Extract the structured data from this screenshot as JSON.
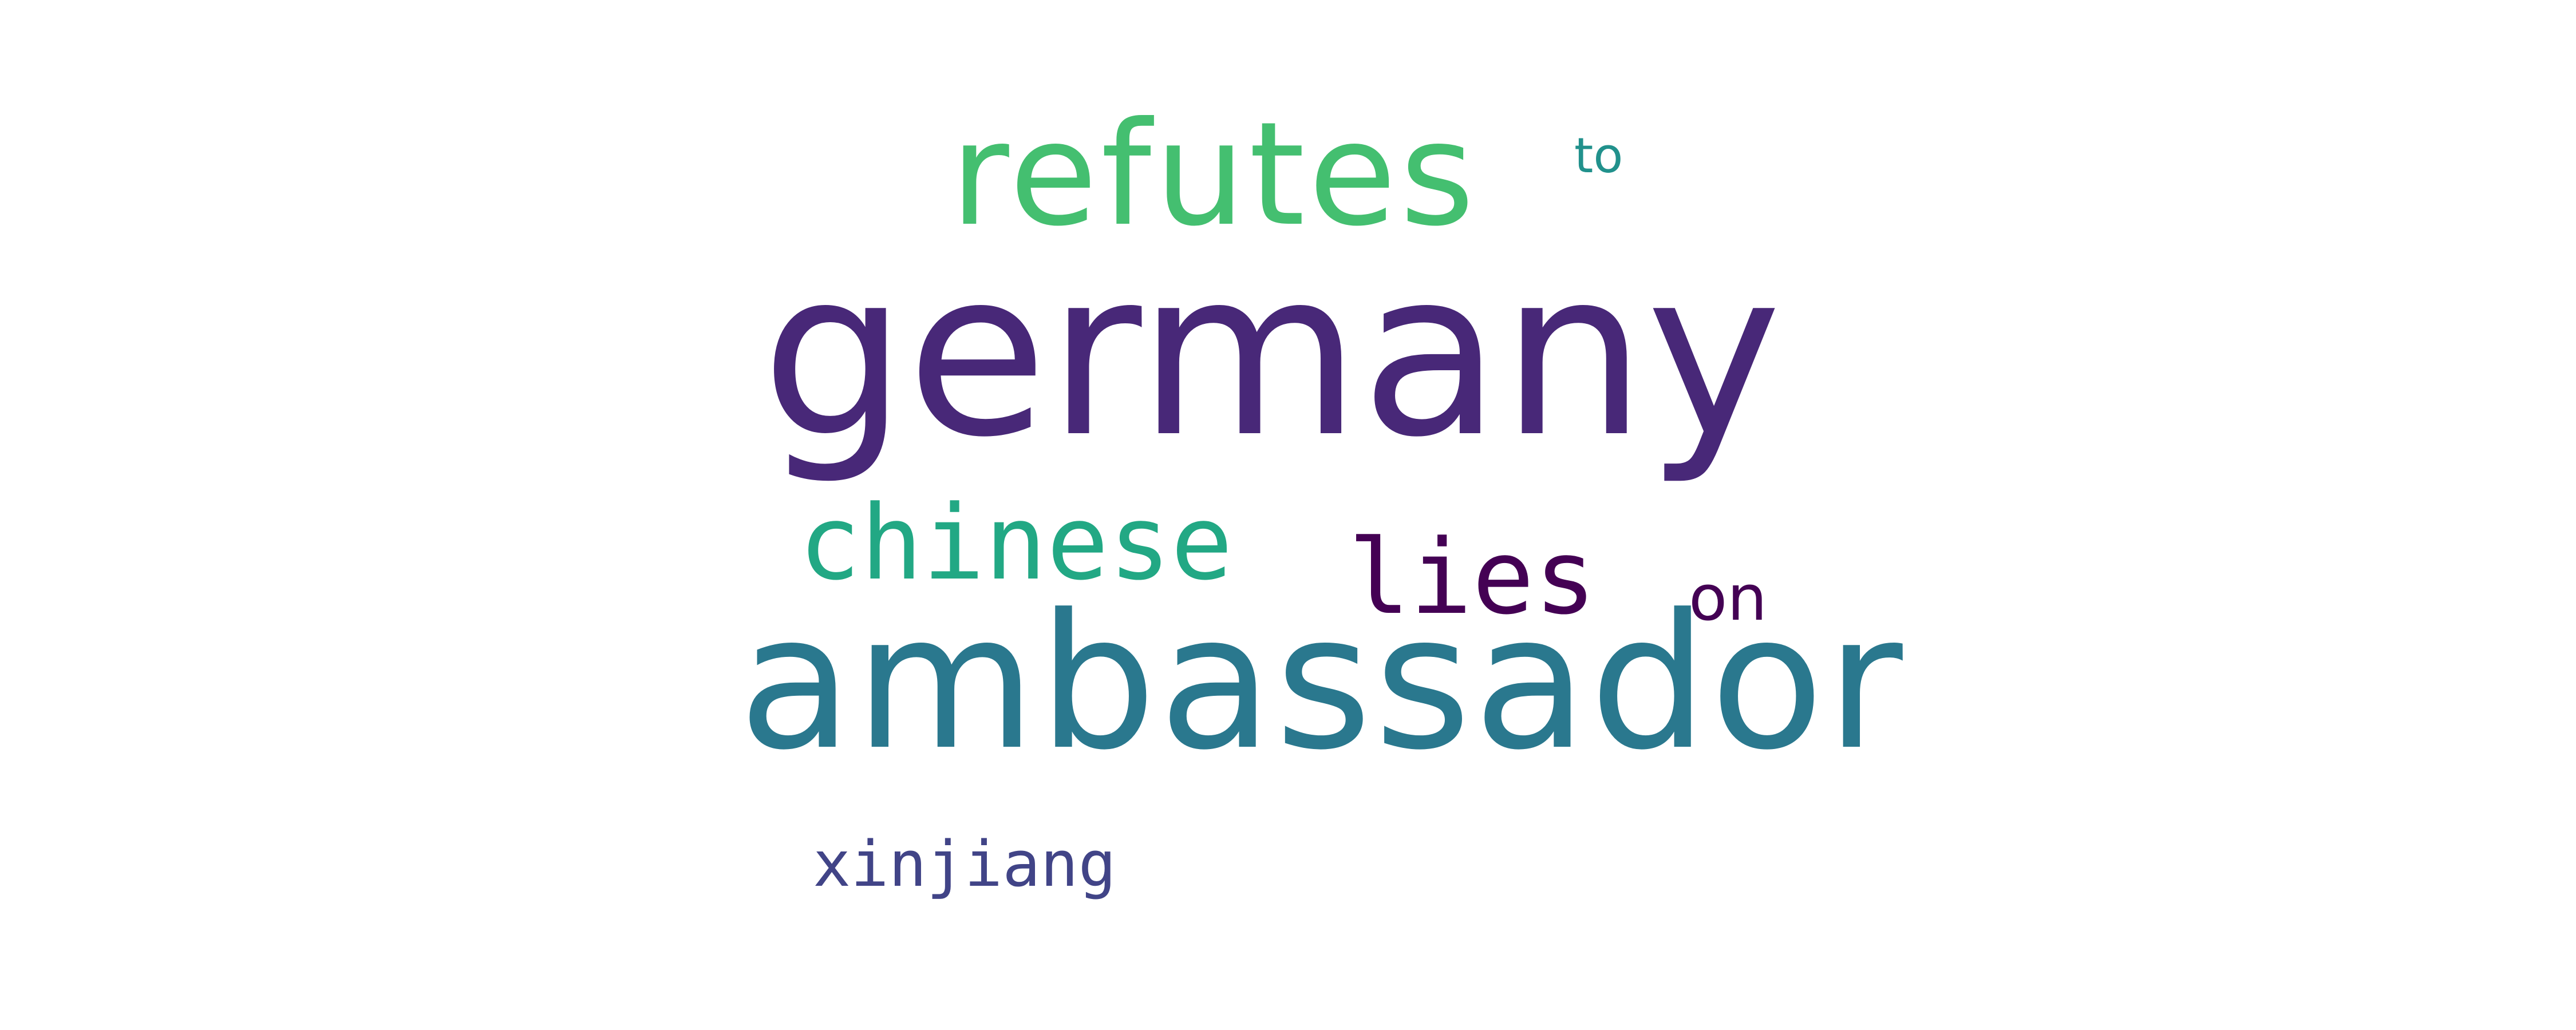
{
  "words": {
    "germany": {
      "text": "germany",
      "color": "#482878"
    },
    "ambassador": {
      "text": "ambassador",
      "color": "#2a788e"
    },
    "refutes": {
      "text": "refutes",
      "color": "#44bf70"
    },
    "chinese": {
      "text": "chinese",
      "color": "#22a884"
    },
    "lies": {
      "text": "lies",
      "color": "#440154"
    },
    "on": {
      "text": "on",
      "color": "#440154"
    },
    "xinjiang": {
      "text": "xinjiang",
      "color": "#414487"
    },
    "to": {
      "text": "to",
      "color": "#21918c"
    }
  }
}
